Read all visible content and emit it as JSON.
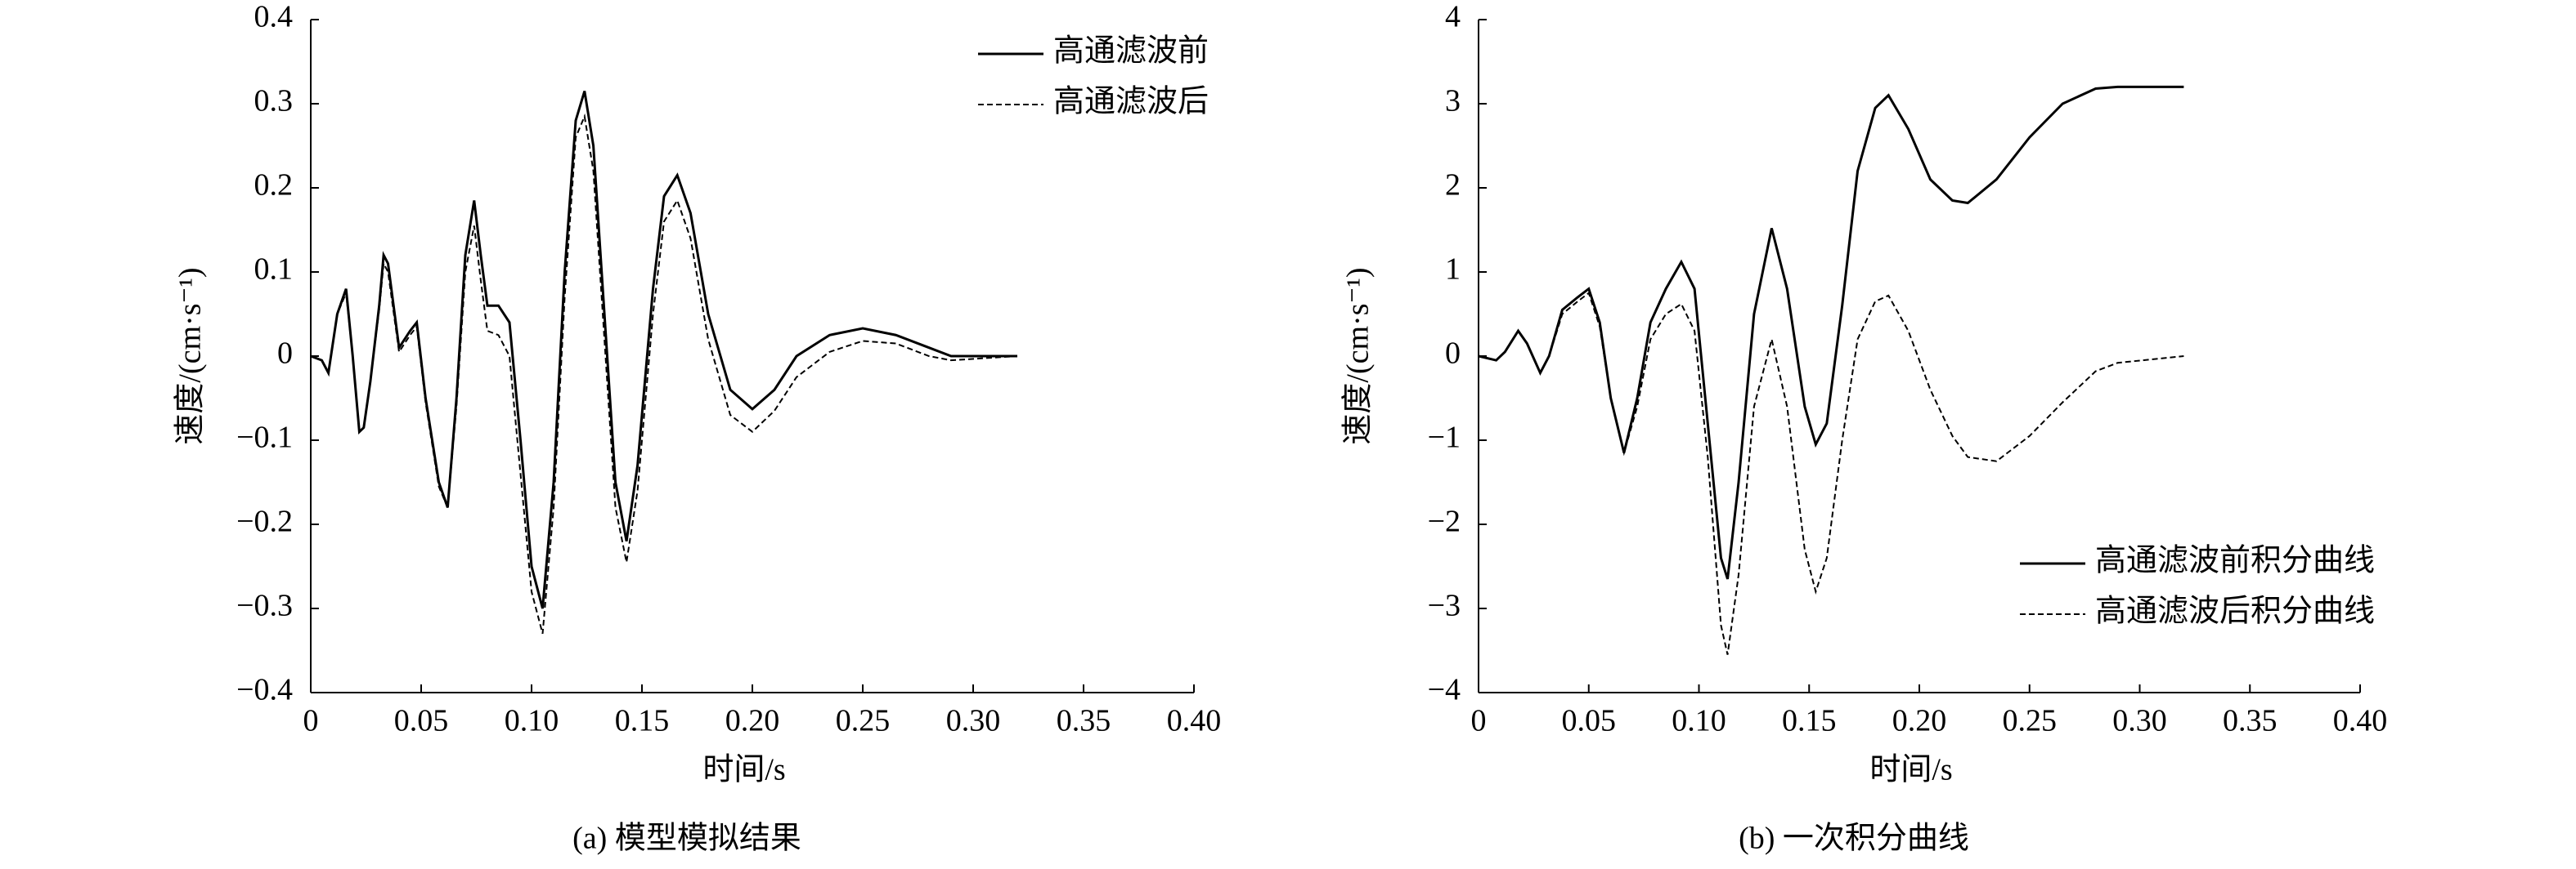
{
  "chart_data": [
    {
      "type": "line",
      "caption": "(a) 模型模拟结果",
      "xlabel": "时间/s",
      "ylabel": "速度/(cm·s⁻¹)",
      "legend": "upper right",
      "x": [
        0,
        0.005,
        0.008,
        0.012,
        0.016,
        0.019,
        0.022,
        0.024,
        0.027,
        0.031,
        0.033,
        0.035,
        0.04,
        0.045,
        0.048,
        0.052,
        0.058,
        0.062,
        0.066,
        0.07,
        0.074,
        0.077,
        0.08,
        0.085,
        0.09,
        0.095,
        0.1,
        0.105,
        0.11,
        0.115,
        0.12,
        0.124,
        0.128,
        0.133,
        0.138,
        0.143,
        0.148,
        0.155,
        0.16,
        0.166,
        0.172,
        0.18,
        0.19,
        0.2,
        0.21,
        0.22,
        0.235,
        0.25,
        0.265,
        0.28,
        0.29,
        0.32
      ],
      "series": [
        {
          "name": "高通滤波前",
          "color": "#000000",
          "linestyle": "solid",
          "values": [
            0,
            -0.005,
            -0.02,
            0.05,
            0.08,
            0.0,
            -0.09,
            -0.085,
            -0.03,
            0.06,
            0.12,
            0.11,
            0.01,
            0.03,
            0.04,
            -0.05,
            -0.15,
            -0.18,
            -0.05,
            0.12,
            0.185,
            0.12,
            0.06,
            0.06,
            0.04,
            -0.1,
            -0.25,
            -0.3,
            -0.15,
            0.1,
            0.28,
            0.315,
            0.25,
            0.05,
            -0.15,
            -0.22,
            -0.13,
            0.08,
            0.19,
            0.215,
            0.17,
            0.05,
            -0.04,
            -0.063,
            -0.04,
            0.0,
            0.025,
            0.033,
            0.025,
            0.01,
            0.0,
            0.0
          ]
        },
        {
          "name": "高通滤波后",
          "color": "#000000",
          "linestyle": "dashed",
          "values": [
            0,
            -0.005,
            -0.02,
            0.05,
            0.075,
            0.0,
            -0.09,
            -0.085,
            -0.03,
            0.055,
            0.11,
            0.1,
            0.005,
            0.025,
            0.035,
            -0.055,
            -0.155,
            -0.18,
            -0.06,
            0.1,
            0.155,
            0.09,
            0.03,
            0.025,
            0.0,
            -0.14,
            -0.28,
            -0.33,
            -0.18,
            0.07,
            0.26,
            0.285,
            0.22,
            0.02,
            -0.18,
            -0.245,
            -0.16,
            0.05,
            0.16,
            0.185,
            0.14,
            0.02,
            -0.07,
            -0.09,
            -0.065,
            -0.025,
            0.005,
            0.018,
            0.015,
            0.0,
            -0.005,
            0.0
          ]
        }
      ],
      "xlim": [
        0,
        0.4
      ],
      "ylim": [
        -0.4,
        0.4
      ],
      "xticks": [
        0,
        0.05,
        {
          "value": 0.1,
          "label": "0.10"
        },
        0.15,
        {
          "value": 0.2,
          "label": "0.20"
        },
        0.25,
        {
          "value": 0.3,
          "label": "0.30"
        },
        0.35,
        {
          "value": 0.4,
          "label": "0.40"
        }
      ],
      "yticks": [
        {
          "value": -0.4,
          "label": "−0.4"
        },
        {
          "value": -0.3,
          "label": "−0.3"
        },
        {
          "value": -0.2,
          "label": "−0.2"
        },
        {
          "value": -0.1,
          "label": "−0.1"
        },
        0,
        0.1,
        0.2,
        0.3,
        0.4
      ]
    },
    {
      "type": "line",
      "caption": "(b) 一次积分曲线",
      "xlabel": "时间/s",
      "ylabel": "速度/(cm·s⁻¹)",
      "legend": "lower right",
      "x": [
        0,
        0.008,
        0.012,
        0.018,
        0.022,
        0.028,
        0.032,
        0.038,
        0.045,
        0.05,
        0.055,
        0.06,
        0.066,
        0.072,
        0.078,
        0.085,
        0.092,
        0.098,
        0.104,
        0.11,
        0.113,
        0.118,
        0.125,
        0.133,
        0.14,
        0.148,
        0.153,
        0.158,
        0.165,
        0.172,
        0.18,
        0.186,
        0.195,
        0.205,
        0.215,
        0.222,
        0.235,
        0.25,
        0.265,
        0.28,
        0.29,
        0.32
      ],
      "series": [
        {
          "name": "高通滤波前积分曲线",
          "color": "#000000",
          "linestyle": "solid",
          "values": [
            0,
            -0.05,
            0.05,
            0.3,
            0.15,
            -0.2,
            0.0,
            0.55,
            0.7,
            0.8,
            0.4,
            -0.5,
            -1.15,
            -0.5,
            0.4,
            0.8,
            1.12,
            0.8,
            -0.8,
            -2.4,
            -2.65,
            -1.5,
            0.5,
            1.52,
            0.8,
            -0.6,
            -1.05,
            -0.8,
            0.6,
            2.2,
            2.95,
            3.1,
            2.7,
            2.1,
            1.85,
            1.82,
            2.1,
            2.6,
            3.0,
            3.18,
            3.2,
            3.2
          ]
        },
        {
          "name": "高通滤波后积分曲线",
          "color": "#000000",
          "linestyle": "dashed",
          "values": [
            0,
            -0.05,
            0.05,
            0.3,
            0.15,
            -0.2,
            0.0,
            0.5,
            0.65,
            0.75,
            0.35,
            -0.5,
            -1.15,
            -0.6,
            0.2,
            0.5,
            0.62,
            0.3,
            -1.2,
            -3.2,
            -3.55,
            -2.6,
            -0.6,
            0.2,
            -0.6,
            -2.3,
            -2.8,
            -2.4,
            -1.0,
            0.2,
            0.65,
            0.72,
            0.3,
            -0.4,
            -0.95,
            -1.2,
            -1.25,
            -0.95,
            -0.55,
            -0.18,
            -0.08,
            0.0
          ]
        }
      ],
      "xlim": [
        0,
        0.4
      ],
      "ylim": [
        -4,
        4
      ],
      "xticks": [
        0,
        0.05,
        {
          "value": 0.1,
          "label": "0.10"
        },
        0.15,
        {
          "value": 0.2,
          "label": "0.20"
        },
        0.25,
        {
          "value": 0.3,
          "label": "0.30"
        },
        0.35,
        {
          "value": 0.4,
          "label": "0.40"
        }
      ],
      "yticks": [
        {
          "value": -4,
          "label": "−4"
        },
        {
          "value": -3,
          "label": "−3"
        },
        {
          "value": -2,
          "label": "−2"
        },
        {
          "value": -1,
          "label": "−1"
        },
        0,
        1,
        2,
        3,
        4
      ]
    }
  ]
}
